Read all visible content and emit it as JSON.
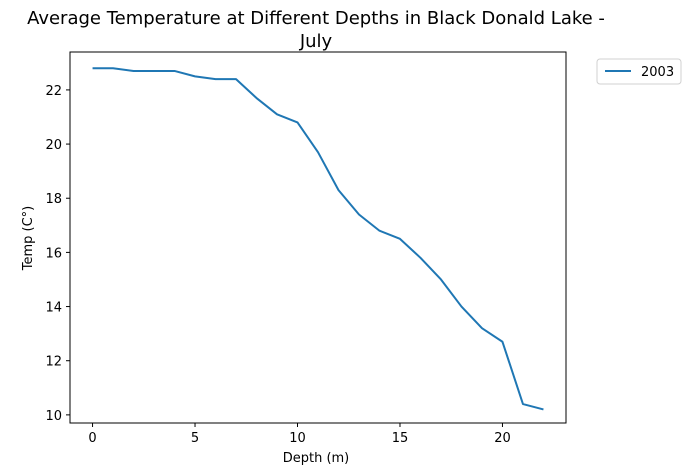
{
  "chart_data": {
    "type": "line",
    "title": [
      "Average Temperature at Different Depths in Black Donald Lake -",
      "July"
    ],
    "xlabel": "Depth (m)",
    "ylabel": "Temp (C°)",
    "xlim": [
      -1.1,
      23.1
    ],
    "ylim": [
      9.7,
      23.4
    ],
    "xticks": [
      0,
      5,
      10,
      15,
      20
    ],
    "yticks": [
      10,
      12,
      14,
      16,
      18,
      20,
      22
    ],
    "grid": false,
    "legend_position": "outside-top-right",
    "series": [
      {
        "name": "2003",
        "color": "#1f77b4",
        "x": [
          0,
          1,
          2,
          3,
          4,
          5,
          6,
          7,
          8,
          9,
          10,
          11,
          12,
          13,
          14,
          15,
          16,
          17,
          18,
          19,
          20,
          21,
          22
        ],
        "y": [
          22.8,
          22.8,
          22.7,
          22.7,
          22.7,
          22.5,
          22.4,
          22.4,
          21.7,
          21.1,
          20.8,
          19.7,
          18.3,
          17.4,
          16.8,
          16.5,
          15.8,
          15.0,
          14.0,
          13.2,
          12.7,
          10.4,
          10.2
        ]
      }
    ]
  }
}
